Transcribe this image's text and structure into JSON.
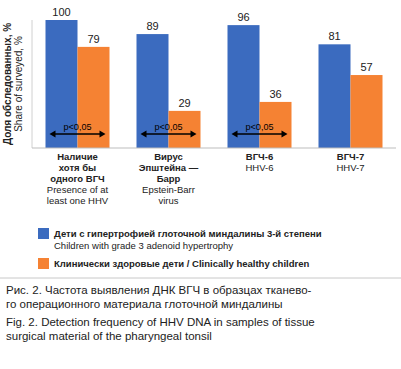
{
  "chart_data": {
    "type": "bar",
    "title": "Рис. 2. Частота выявления ДНК ВГЧ в образцах тканево-\nго операционного материала глоточной миндалины",
    "subtitle": "Fig. 2. Detection frequency of HHV DNA in samples of tissue\nsurgical material of the pharyngeal tonsil",
    "ylabel": "Доля обследованных, %\nShare of surveyed, %",
    "categories": [
      "Наличие\nхотя бы\nодного ВГЧ\nPresence of at\nleast one HHV",
      "Вирус\nЭпштейна —\nБарр\nEpstein-Barr\nvirus",
      "ВГЧ-6\nHHV-6",
      "ВГЧ-7\nHHV-7"
    ],
    "series": [
      {
        "name": "Дети с гипертрофией глоточной миндалины 3-й степени\nChildren with grade 3 adenoid hypertrophy",
        "color": "#3b6bbf",
        "values": [
          100,
          89,
          96,
          81
        ]
      },
      {
        "name": "Клинически здоровые дети / Clinically healthy children",
        "color": "#f58233",
        "values": [
          79,
          29,
          36,
          57
        ]
      }
    ],
    "annotations": [
      "p<0,05",
      "p<0,05",
      "p<0,05",
      null
    ],
    "ylim": [
      0,
      100
    ],
    "tick_labels": "x",
    "data_labels": true,
    "grid": false,
    "legend": "bottom"
  }
}
